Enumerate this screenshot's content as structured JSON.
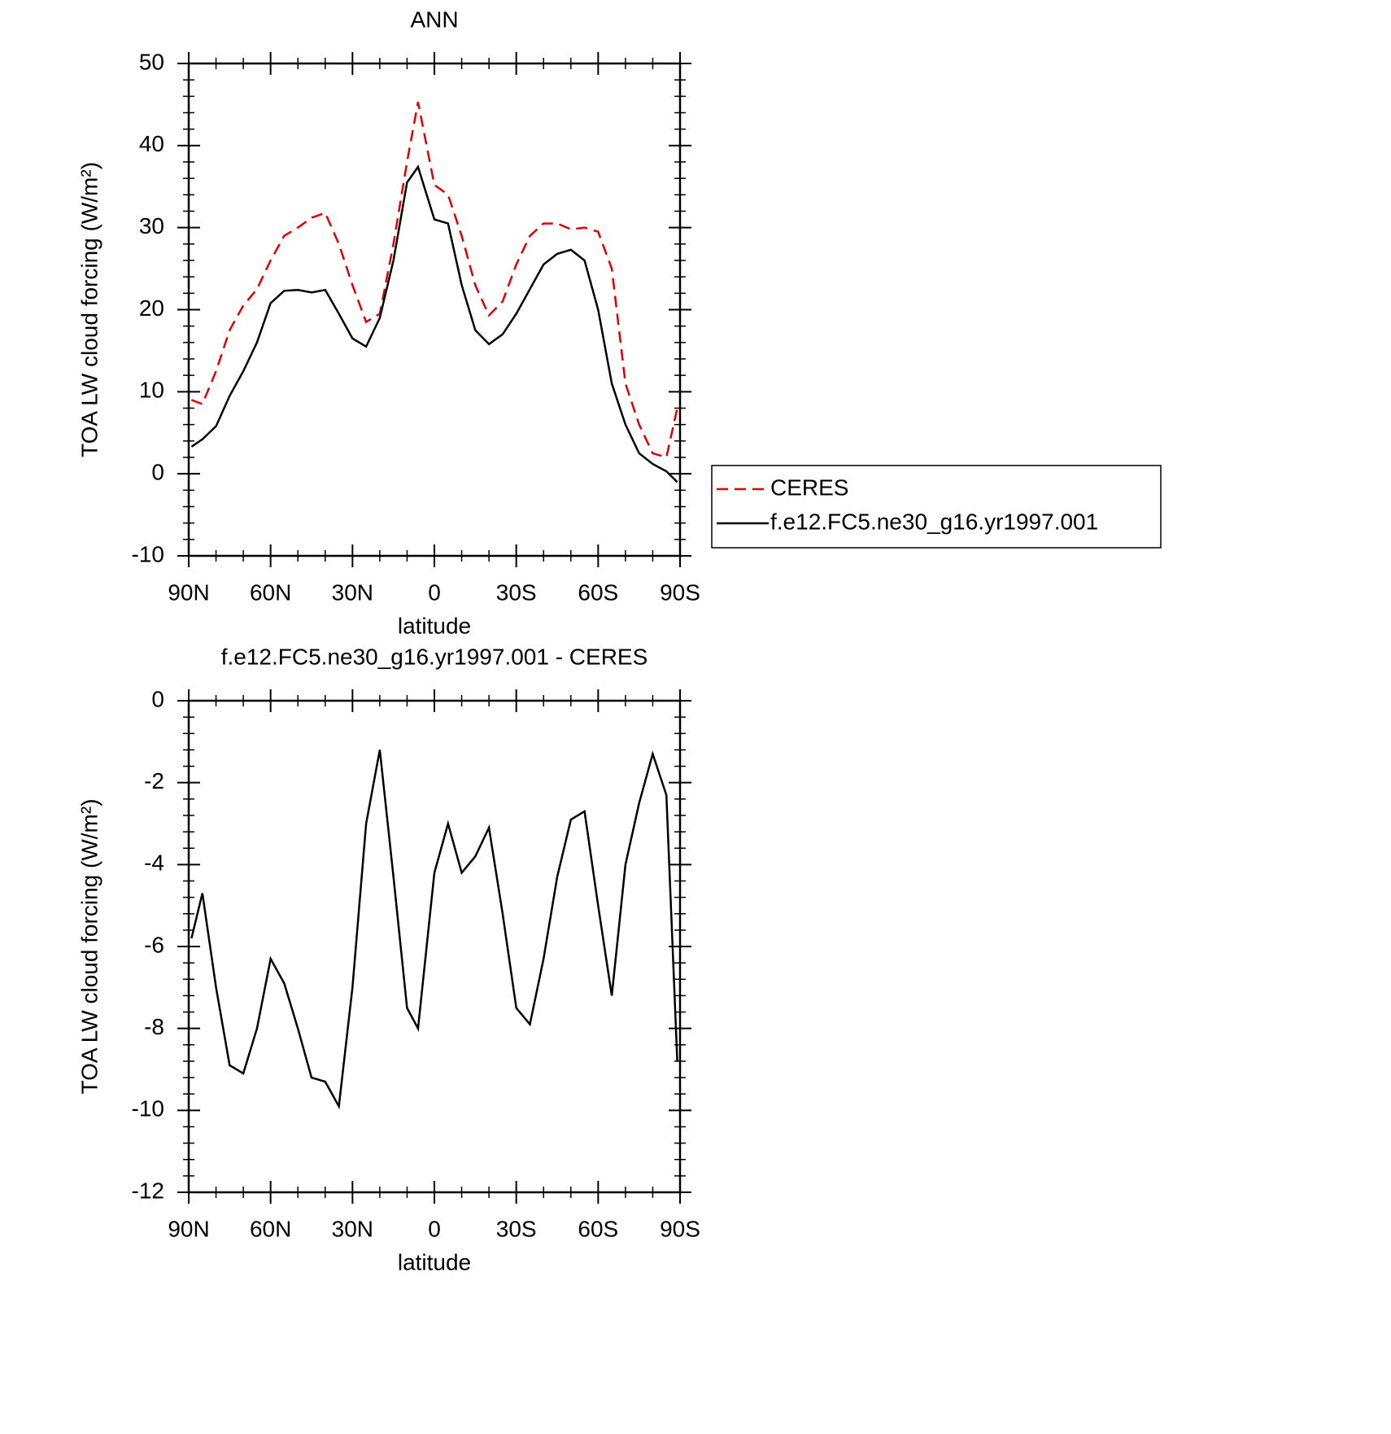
{
  "chart_data": [
    {
      "type": "line",
      "title": "ANN",
      "xlabel": "latitude",
      "ylabel": "TOA LW cloud forcing (W/m²)",
      "xlim": [
        90,
        -90
      ],
      "xticks": [
        {
          "value": 90,
          "label": "90N"
        },
        {
          "value": 60,
          "label": "60N"
        },
        {
          "value": 30,
          "label": "30N"
        },
        0,
        {
          "value": -30,
          "label": "30S"
        },
        {
          "value": -60,
          "label": "60S"
        },
        {
          "value": -90,
          "label": "90S"
        }
      ],
      "ylim": [
        -10,
        50
      ],
      "yticks": [
        -10,
        0,
        10,
        20,
        30,
        40,
        50
      ],
      "legend": "right",
      "x": [
        89,
        85,
        80,
        75,
        70,
        65,
        60,
        55,
        50,
        45,
        40,
        35,
        30,
        25,
        20,
        15,
        10,
        6,
        0,
        -5,
        -10,
        -15,
        -20,
        -25,
        -30,
        -35,
        -40,
        -45,
        -50,
        -55,
        -60,
        -65,
        -70,
        -75,
        -80,
        -85,
        -89
      ],
      "series": [
        {
          "name": "CERES",
          "color": "#e00000",
          "dash": "dashed",
          "values": [
            9,
            8.5,
            12.5,
            17.5,
            20.5,
            22.5,
            26,
            29,
            30,
            31.2,
            31.8,
            28,
            23,
            18.5,
            19.5,
            28,
            38,
            45.3,
            35.2,
            34,
            29,
            23,
            19.3,
            21,
            25.5,
            29,
            30.5,
            30.5,
            29.8,
            30,
            29.5,
            25,
            11,
            6,
            2.5,
            2,
            8
          ]
        },
        {
          "name": "f.e12.FC5.ne30_g16.yr1997.001",
          "color": "#000000",
          "dash": "solid",
          "values": [
            3.3,
            4.2,
            5.8,
            9.5,
            12.5,
            16,
            20.8,
            22.3,
            22.4,
            22.1,
            22.4,
            19.5,
            16.5,
            15.5,
            19,
            26,
            35.5,
            37.4,
            31,
            30.5,
            23,
            17.5,
            15.8,
            17,
            19.5,
            22.5,
            25.5,
            26.8,
            27.3,
            26,
            20,
            11,
            6,
            2.5,
            1.2,
            0.3,
            -1
          ]
        }
      ]
    },
    {
      "type": "line",
      "title": "f.e12.FC5.ne30_g16.yr1997.001 - CERES",
      "xlabel": "latitude",
      "ylabel": "TOA LW cloud forcing (W/m²)",
      "xlim": [
        90,
        -90
      ],
      "xticks": [
        {
          "value": 90,
          "label": "90N"
        },
        {
          "value": 60,
          "label": "60N"
        },
        {
          "value": 30,
          "label": "30N"
        },
        0,
        {
          "value": -30,
          "label": "30S"
        },
        {
          "value": -60,
          "label": "60S"
        },
        {
          "value": -90,
          "label": "90S"
        }
      ],
      "ylim": [
        -12,
        0
      ],
      "yticks": [
        -12,
        -10,
        -8,
        -6,
        -4,
        -2,
        0
      ],
      "x": [
        89,
        85,
        80,
        75,
        70,
        65,
        60,
        55,
        50,
        45,
        40,
        35,
        30,
        25,
        20,
        15,
        10,
        6,
        0,
        -5,
        -10,
        -15,
        -20,
        -25,
        -30,
        -35,
        -40,
        -45,
        -50,
        -55,
        -60,
        -65,
        -70,
        -75,
        -80,
        -85,
        -89
      ],
      "series": [
        {
          "color": "#000000",
          "dash": "solid",
          "values": [
            -5.8,
            -4.7,
            -7.0,
            -8.9,
            -9.1,
            -8.0,
            -6.3,
            -6.9,
            -8.0,
            -9.2,
            -9.3,
            -9.9,
            -7.0,
            -3.0,
            -1.2,
            -4.3,
            -7.5,
            -8.0,
            -4.2,
            -3.0,
            -4.2,
            -3.8,
            -3.1,
            -5.2,
            -7.5,
            -7.9,
            -6.3,
            -4.3,
            -2.9,
            -2.7,
            -5.0,
            -7.2,
            -4.0,
            -2.5,
            -1.3,
            -2.3,
            -8.8
          ]
        }
      ]
    }
  ]
}
